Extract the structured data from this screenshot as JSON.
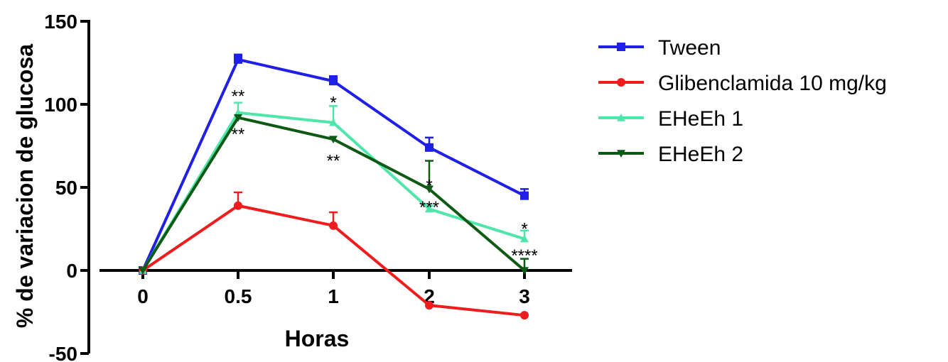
{
  "chart_data": {
    "type": "line",
    "xlabel": "Horas",
    "ylabel": "% de variacion de glucosa",
    "ylim": [
      -50,
      150
    ],
    "x": [
      "0",
      "0.5",
      "1",
      "2",
      "3"
    ],
    "y_ticks": [
      "150",
      "100",
      "50",
      "0",
      "-50"
    ],
    "y_tick_values": [
      150,
      100,
      50,
      0,
      -50
    ],
    "grid": false,
    "legend_position": "right",
    "series": [
      {
        "name": "Tween",
        "color": "#1f1fe6",
        "marker": "square",
        "values": [
          0,
          127,
          114,
          74,
          45
        ],
        "errors": [
          0,
          3,
          3,
          6,
          4
        ]
      },
      {
        "name": "Glibenclamida 10 mg/kg",
        "color": "#ee1c1c",
        "marker": "circle",
        "values": [
          0,
          39,
          27,
          -21,
          -27
        ],
        "errors": [
          0,
          8,
          8,
          0,
          0
        ]
      },
      {
        "name": "EHeEh 1",
        "color": "#4ee6aa",
        "marker": "triangle-up",
        "values": [
          0,
          95,
          89,
          37,
          19
        ],
        "errors": [
          0,
          6,
          10,
          2,
          5
        ]
      },
      {
        "name": "EHeEh 2",
        "color": "#0c5a14",
        "marker": "triangle-down",
        "values": [
          0,
          92,
          79,
          49,
          0
        ],
        "errors": [
          0,
          0,
          0,
          17,
          7
        ]
      }
    ],
    "annotations": [
      {
        "text": "**",
        "x": "0.5",
        "y": 105
      },
      {
        "text": "**",
        "x": "0.5",
        "y": 82
      },
      {
        "text": "*",
        "x": "1",
        "y": 101
      },
      {
        "text": "**",
        "x": "1",
        "y": 66
      },
      {
        "text": "*",
        "x": "2",
        "y": 51
      },
      {
        "text": "***",
        "x": "2",
        "y": 38
      },
      {
        "text": "*",
        "x": "3",
        "y": 25
      },
      {
        "text": "****",
        "x": "3",
        "y": 9
      }
    ]
  }
}
